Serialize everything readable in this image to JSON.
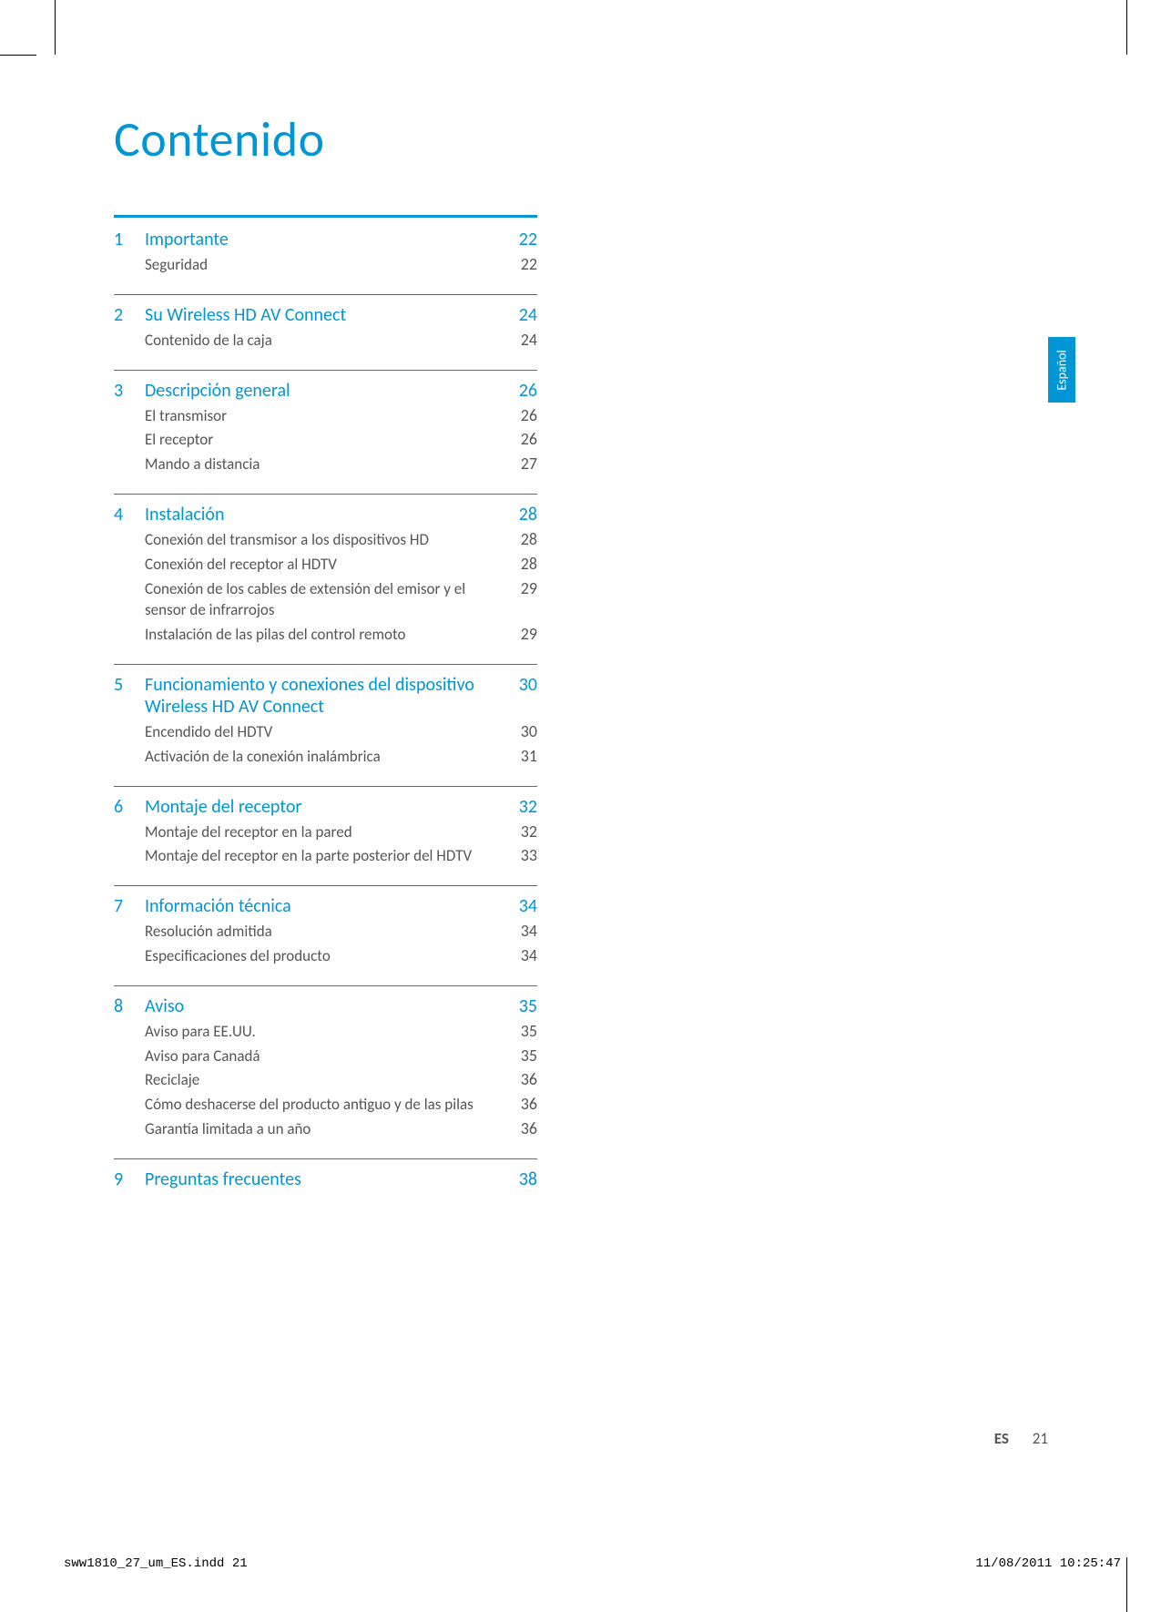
{
  "colors": {
    "accent": "#0096d6",
    "text_secondary": "#555555",
    "text_primary": "#000000",
    "tab_bg": "#0096d6",
    "tab_text": "#ffffff",
    "rule_thick": "#0096d6",
    "rule_thin": "#666666"
  },
  "title": "Contenido",
  "sections": [
    {
      "number": "1",
      "title": "Importante",
      "page": "22",
      "items": [
        {
          "label": "Seguridad",
          "page": "22"
        }
      ]
    },
    {
      "number": "2",
      "title": "Su Wireless HD AV Connect",
      "page": "24",
      "items": [
        {
          "label": "Contenido de la caja",
          "page": "24"
        }
      ]
    },
    {
      "number": "3",
      "title": "Descripción general",
      "page": "26",
      "items": [
        {
          "label": "El transmisor",
          "page": "26"
        },
        {
          "label": "El receptor",
          "page": "26"
        },
        {
          "label": "Mando a distancia",
          "page": "27"
        }
      ]
    },
    {
      "number": "4",
      "title": "Instalación",
      "page": "28",
      "items": [
        {
          "label": "Conexión del transmisor a los dispositivos HD",
          "page": "28"
        },
        {
          "label": "Conexión del receptor al HDTV",
          "page": "28"
        },
        {
          "label": "Conexión de los cables de extensión del emisor y el sensor de infrarrojos",
          "page": "29"
        },
        {
          "label": "Instalación de las pilas del control remoto",
          "page": "29"
        }
      ]
    },
    {
      "number": "5",
      "title": "Funcionamiento y conexiones del dispositivo Wireless HD AV Connect",
      "page": "30",
      "items": [
        {
          "label": "Encendido del HDTV",
          "page": "30"
        },
        {
          "label": "Activación de la conexión inalámbrica",
          "page": "31"
        }
      ]
    },
    {
      "number": "6",
      "title": "Montaje del receptor",
      "page": "32",
      "items": [
        {
          "label": "Montaje del receptor en la pared",
          "page": "32"
        },
        {
          "label": "Montaje del receptor en la parte posterior del HDTV",
          "page": "33"
        }
      ]
    },
    {
      "number": "7",
      "title": "Información técnica",
      "page": "34",
      "items": [
        {
          "label": "Resolución admitida",
          "page": "34"
        },
        {
          "label": "Especificaciones del producto",
          "page": "34"
        }
      ]
    },
    {
      "number": "8",
      "title": "Aviso",
      "page": "35",
      "items": [
        {
          "label": "Aviso para EE.UU.",
          "page": "35"
        },
        {
          "label": "Aviso para Canadá",
          "page": "35"
        },
        {
          "label": "Reciclaje",
          "page": "36"
        },
        {
          "label": "Cómo deshacerse del producto antiguo y de las pilas",
          "page": "36"
        },
        {
          "label": "Garantía limitada a un año",
          "page": "36"
        }
      ]
    },
    {
      "number": "9",
      "title": "Preguntas frecuentes",
      "page": "38",
      "items": []
    }
  ],
  "language_tab": "Español",
  "footer": {
    "lang_code": "ES",
    "page_number": "21",
    "print_file": "sww1810_27_um_ES.indd   21",
    "print_timestamp": "11/08/2011   10:25:47"
  }
}
